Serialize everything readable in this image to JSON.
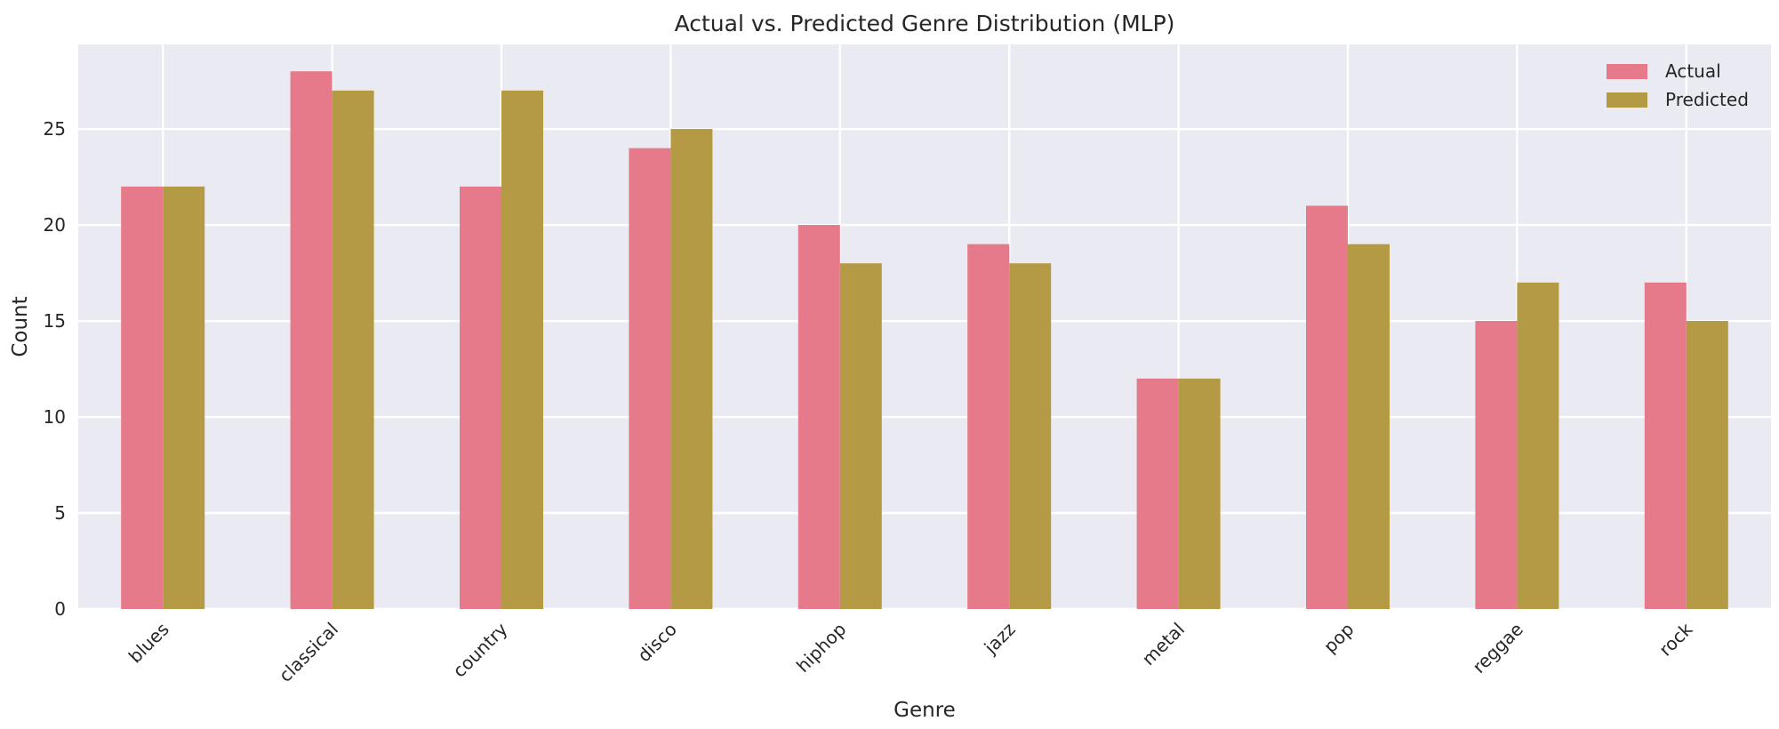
{
  "chart_data": {
    "type": "bar",
    "title": "Actual vs. Predicted Genre Distribution (MLP)",
    "xlabel": "Genre",
    "ylabel": "Count",
    "categories": [
      "blues",
      "classical",
      "country",
      "disco",
      "hiphop",
      "jazz",
      "metal",
      "pop",
      "reggae",
      "rock"
    ],
    "series": [
      {
        "name": "Actual",
        "values": [
          22,
          28,
          22,
          24,
          20,
          19,
          12,
          21,
          15,
          17
        ],
        "color": "#e67a8a"
      },
      {
        "name": "Predicted",
        "values": [
          22,
          27,
          27,
          25,
          18,
          18,
          12,
          19,
          17,
          15
        ],
        "color": "#b59a46"
      }
    ],
    "ylim": [
      0,
      29.4
    ],
    "yticks": [
      0,
      5,
      10,
      15,
      20,
      25
    ],
    "grid": true,
    "legend_position": "top-right",
    "background_color": "#eaeaf2"
  }
}
